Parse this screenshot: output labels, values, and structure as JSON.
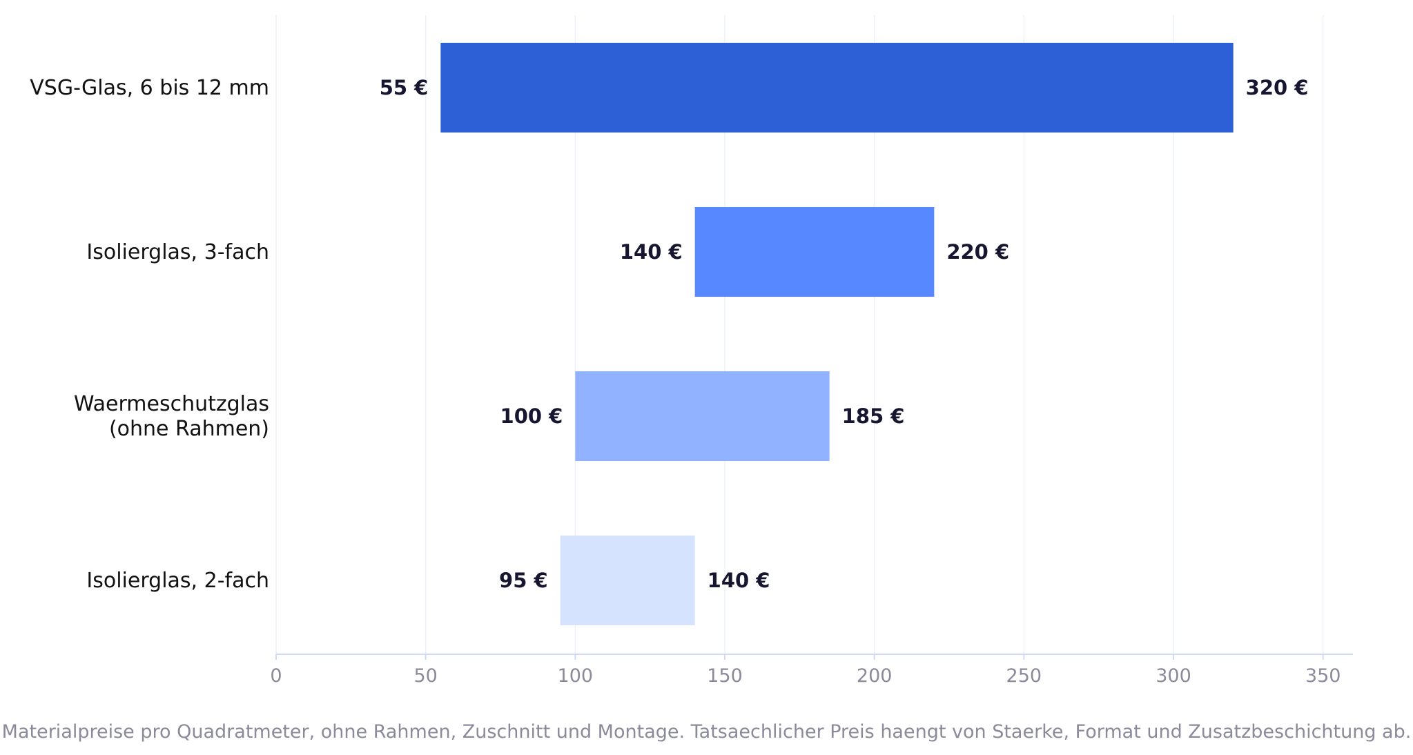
{
  "chart_data": {
    "type": "bar",
    "orientation": "horizontal-range",
    "categories": [
      "VSG-Glas, 6 bis 12 mm",
      "Isolierglas, 3-fach",
      "Waermeschutzglas\n(ohne Rahmen)",
      "Isolierglas, 2-fach"
    ],
    "series": [
      {
        "low": [
          55,
          140,
          100,
          95
        ],
        "high": [
          320,
          220,
          185,
          140
        ]
      }
    ],
    "low_labels": [
      "55 €",
      "140 €",
      "100 €",
      "95 €"
    ],
    "high_labels": [
      "320 €",
      "220 €",
      "185 €",
      "140 €"
    ],
    "bar_colors": [
      "#2d60d6",
      "#5788ff",
      "#90b2ff",
      "#d5e3ff"
    ],
    "xlim": [
      0,
      360
    ],
    "xticks": [
      0,
      50,
      100,
      150,
      200,
      250,
      300,
      350
    ],
    "xlabel": "",
    "ylabel": "",
    "grid": "vertical",
    "axis_color": "#cfdcf5",
    "grid_color": "#ecf0fa"
  },
  "footnote": "Materialpreise pro Quadratmeter, ohne Rahmen, Zuschnitt und Montage. Tatsaechlicher Preis haengt von Staerke, Format und Zusatzbeschichtung ab."
}
